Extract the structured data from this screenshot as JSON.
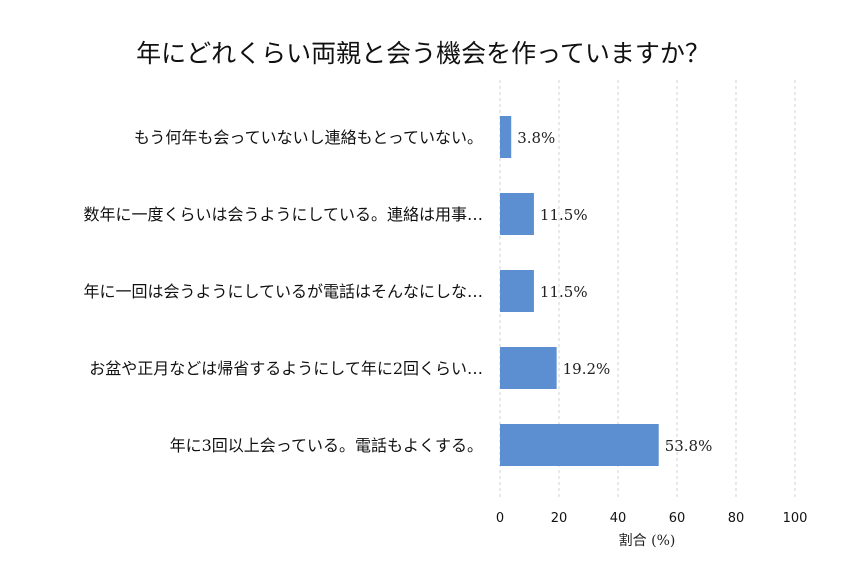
{
  "chart_data": {
    "type": "bar",
    "orientation": "horizontal",
    "title": "年にどれくらい両親と会う機会を作っていますか？",
    "xlabel": "割合 (%)",
    "ylabel": "",
    "categories": [
      "もう何年も会っていないし連絡もとっていない。",
      "数年に一度くらいは会うようにしている。連絡は用事…",
      "年に一回は会うようにしているが電話はそんなにしな…",
      "お盆や正月などは帰省するようにして年に2回くらい…",
      "年に3回以上会っている。電話もよくする。"
    ],
    "values": [
      3.8,
      11.5,
      11.5,
      19.2,
      53.8
    ],
    "value_labels": [
      "3.8%",
      "11.5%",
      "11.5%",
      "19.2%",
      "53.8%"
    ],
    "xlim": [
      0,
      100
    ],
    "xticks": [
      0,
      20,
      40,
      60,
      80,
      100
    ],
    "xtick_labels": [
      "0",
      "20",
      "40",
      "60",
      "80",
      "100"
    ],
    "grid": "vertical dashed",
    "bar_color": "#5b8fd1"
  }
}
